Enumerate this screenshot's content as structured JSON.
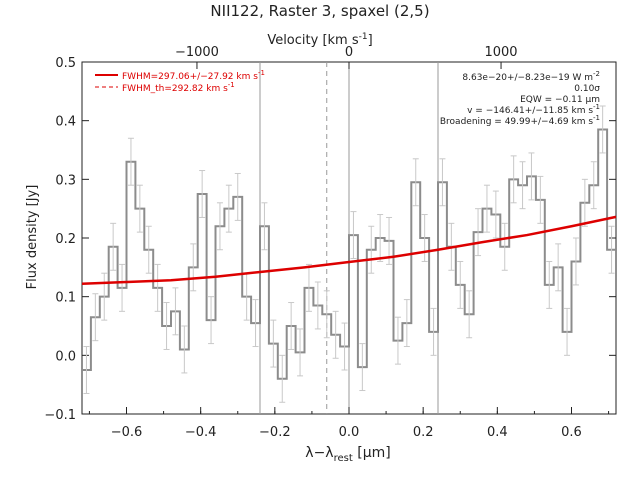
{
  "chart_data": {
    "type": "line",
    "title": "NII122, Raster 3, spaxel (2,5)",
    "xlabel": "λ−λ",
    "xlabel_sub": "rest",
    "xlabel_unit": " [μm]",
    "ylabel": "Flux density [Jy]",
    "top_axis_label": "Velocity [km s",
    "top_axis_label_sup": "-1",
    "top_axis_label_end": "]",
    "xlim": [
      -0.72,
      0.72
    ],
    "ylim": [
      -0.1,
      0.5
    ],
    "top_ticks": [
      {
        "label": "−1000",
        "x": -0.41
      },
      {
        "label": "0",
        "x": 0.0
      },
      {
        "label": "1000",
        "x": 0.41
      }
    ],
    "x_ticks": [
      "−0.6",
      "−0.4",
      "−0.2",
      "0.0",
      "0.2",
      "0.4",
      "0.6"
    ],
    "x_tick_values": [
      -0.6,
      -0.4,
      -0.2,
      0.0,
      0.2,
      0.4,
      0.6
    ],
    "y_ticks": [
      "−0.1",
      "0.0",
      "0.1",
      "0.2",
      "0.3",
      "0.4",
      "0.5"
    ],
    "y_tick_values": [
      -0.1,
      0.0,
      0.1,
      0.2,
      0.3,
      0.4,
      0.5
    ],
    "vertical_lines": [
      {
        "x": -0.24,
        "style": "solid"
      },
      {
        "x": -0.06,
        "style": "dashed"
      },
      {
        "x": 0.0,
        "style": "solid"
      },
      {
        "x": 0.24,
        "style": "solid"
      }
    ],
    "legend": [
      {
        "label": "FWHM=297.06+/−27.92 km s",
        "sup": "-1",
        "style": "solid",
        "color": "#dd0000"
      },
      {
        "label": "FWHM_th=292.82 km s",
        "sup": "-1",
        "style": "dashed",
        "color": "#dd0000"
      }
    ],
    "annotations": [
      {
        "text": "8.63e−20+/−8.23e−19 W m",
        "sup": "-2"
      },
      {
        "text": "0.10σ",
        "sup": ""
      },
      {
        "text": "EQW = −0.11 μm",
        "sup": ""
      },
      {
        "text": "v = −146.41+/−11.85 km s",
        "sup": "-1"
      },
      {
        "text": "Broadening = 49.99+/−4.69 km s",
        "sup": "-1"
      }
    ],
    "series": [
      {
        "name": "spectrum",
        "color": "#8c8c8c",
        "bin_width": 0.024,
        "x": [
          -0.708,
          -0.684,
          -0.66,
          -0.636,
          -0.612,
          -0.588,
          -0.564,
          -0.54,
          -0.516,
          -0.492,
          -0.468,
          -0.444,
          -0.42,
          -0.396,
          -0.372,
          -0.348,
          -0.324,
          -0.3,
          -0.276,
          -0.252,
          -0.228,
          -0.204,
          -0.18,
          -0.156,
          -0.132,
          -0.108,
          -0.084,
          -0.06,
          -0.036,
          -0.012,
          0.012,
          0.036,
          0.06,
          0.084,
          0.108,
          0.132,
          0.156,
          0.18,
          0.204,
          0.228,
          0.252,
          0.276,
          0.3,
          0.324,
          0.348,
          0.372,
          0.396,
          0.42,
          0.444,
          0.468,
          0.492,
          0.516,
          0.54,
          0.564,
          0.588,
          0.612,
          0.636,
          0.66,
          0.684,
          0.708
        ],
        "y": [
          -0.025,
          0.065,
          0.1,
          0.185,
          0.115,
          0.33,
          0.25,
          0.18,
          0.115,
          0.05,
          0.075,
          0.01,
          0.15,
          0.275,
          0.06,
          0.22,
          0.25,
          0.27,
          0.1,
          0.055,
          0.22,
          0.02,
          -0.04,
          0.05,
          0.005,
          0.115,
          0.085,
          0.07,
          0.035,
          0.015,
          0.205,
          -0.02,
          0.18,
          0.2,
          0.195,
          0.025,
          0.055,
          0.295,
          0.2,
          0.04,
          0.295,
          0.185,
          0.12,
          0.07,
          0.21,
          0.25,
          0.24,
          0.185,
          0.3,
          0.29,
          0.305,
          0.265,
          0.12,
          0.15,
          0.04,
          0.16,
          0.26,
          0.29,
          0.385,
          0.18
        ],
        "yerr": 0.04
      },
      {
        "name": "fit",
        "color": "#dd0000",
        "x": [
          -0.72,
          -0.6,
          -0.48,
          -0.36,
          -0.24,
          -0.12,
          0.0,
          0.12,
          0.24,
          0.36,
          0.48,
          0.6,
          0.72
        ],
        "y": [
          0.122,
          0.125,
          0.128,
          0.134,
          0.142,
          0.15,
          0.159,
          0.168,
          0.18,
          0.193,
          0.205,
          0.22,
          0.236
        ]
      }
    ]
  }
}
